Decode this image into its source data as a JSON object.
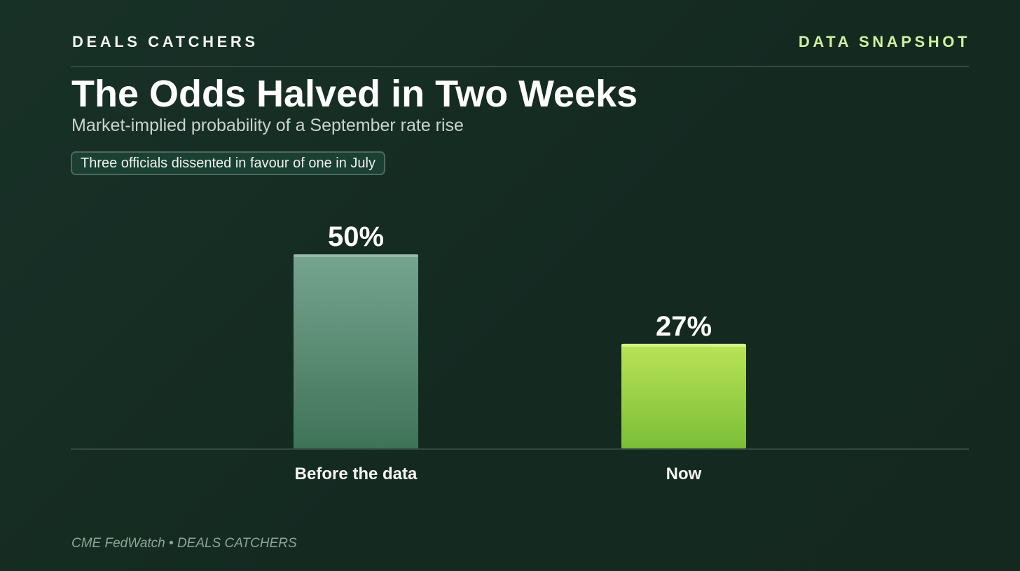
{
  "header": {
    "brand": "DEALS CATCHERS",
    "tag": "DATA SNAPSHOT"
  },
  "title": "The Odds Halved in Two Weeks",
  "subtitle": "Market-implied probability of a September rate rise",
  "note": "Three officials dissented in favour of one in July",
  "source": "CME FedWatch • DEALS CATCHERS",
  "colors": {
    "background": "#16291f",
    "brand_text": "#f2f5f2",
    "accent_text": "#d3efa0",
    "bar_before_top": "#76a48f",
    "bar_before_bottom": "#3f7358",
    "bar_now_top": "#b9e456",
    "bar_now_bottom": "#7bbd38",
    "baseline": "#33493f"
  },
  "chart_data": {
    "type": "bar",
    "categories": [
      "Before the data",
      "Now"
    ],
    "values": [
      50,
      27
    ],
    "value_labels": [
      "50%",
      "27%"
    ],
    "unit": "%",
    "ylim": [
      0,
      50
    ],
    "grid": false,
    "legend": "none"
  }
}
